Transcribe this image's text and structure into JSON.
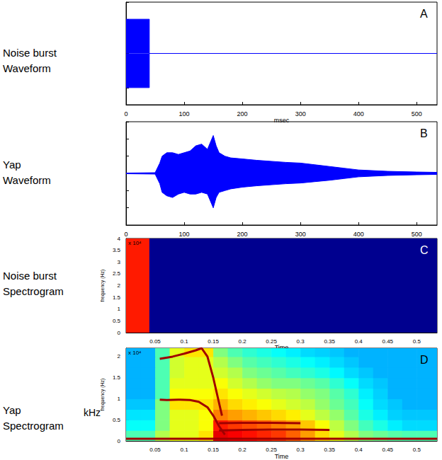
{
  "chart_data": [
    {
      "type": "area",
      "title": "Noise burst\nWaveform",
      "panel": "A",
      "xlabel": "msec",
      "x": [
        0,
        40,
        40,
        535
      ],
      "upper": [
        1,
        1,
        0,
        0
      ],
      "lower": [
        -1,
        -1,
        0,
        0
      ],
      "color": "#0000ff",
      "xlim": [
        0,
        535
      ],
      "xticks": [
        0,
        100,
        200,
        300,
        400,
        500
      ],
      "ylim": [
        -1.5,
        1.5
      ],
      "yticks": [
        -1.5,
        -1,
        -0.5,
        0,
        0.5,
        1,
        1.5
      ],
      "tick_labels": "x",
      "grid": false
    },
    {
      "type": "area",
      "title": "Yap\nWaveform",
      "panel": "B",
      "x": [
        0,
        50,
        58,
        62,
        70,
        80,
        90,
        100,
        110,
        120,
        130,
        140,
        150,
        155,
        160,
        170,
        180,
        200,
        225,
        250,
        275,
        300,
        325,
        350,
        375,
        400,
        450,
        500,
        535
      ],
      "upper": [
        0.01,
        0.02,
        0.3,
        0.5,
        0.6,
        0.6,
        0.55,
        0.6,
        0.65,
        0.8,
        0.85,
        0.7,
        1.1,
        0.8,
        0.6,
        0.5,
        0.45,
        0.42,
        0.38,
        0.35,
        0.32,
        0.3,
        0.25,
        0.2,
        0.15,
        0.1,
        0.06,
        0.04,
        0.03
      ],
      "lower": [
        -0.01,
        -0.02,
        -0.3,
        -0.55,
        -0.65,
        -0.7,
        -0.6,
        -0.55,
        -0.6,
        -0.6,
        -0.55,
        -0.6,
        -1.0,
        -0.7,
        -0.55,
        -0.5,
        -0.45,
        -0.4,
        -0.36,
        -0.33,
        -0.3,
        -0.28,
        -0.24,
        -0.2,
        -0.15,
        -0.1,
        -0.06,
        -0.04,
        -0.03
      ],
      "color": "#0000ff",
      "xlim": [
        0,
        535
      ],
      "xticks": [
        0,
        100,
        200,
        300,
        400,
        500
      ],
      "ylim": [
        -1.5,
        1.5
      ],
      "yticks": [
        -1.5,
        -1,
        -0.5,
        0,
        0.5,
        1,
        1.5
      ],
      "tick_labels": "x",
      "grid": false
    },
    {
      "type": "heatmap",
      "title": "Noise burst\nSpectrogram",
      "panel": "C",
      "xlabel": "Time",
      "ylabel": "frequency (Hz)",
      "multiplier": "x 10⁴",
      "x_edges": [
        0,
        0.04,
        0.535
      ],
      "y_edges": [
        0,
        4
      ],
      "z": [
        [
          0.85,
          0
        ]
      ],
      "clim": [
        0,
        1
      ],
      "xlim": [
        0,
        0.535
      ],
      "xticks": [
        0.05,
        0.1,
        0.15,
        0.2,
        0.25,
        0.3,
        0.35,
        0.4,
        0.45,
        0.5
      ],
      "ylim": [
        0,
        4
      ],
      "yticks": [
        0,
        0.5,
        1,
        1.5,
        2,
        2.5,
        3,
        3.5,
        4
      ],
      "grid": false
    },
    {
      "type": "heatmap",
      "title": "Yap\nSpectrogram",
      "panel": "D",
      "xlabel": "Time",
      "ylabel": "frequency (Hz)",
      "multiplier": "x 10⁴",
      "unit_label": "kHz",
      "x_edges": [
        0,
        0.025,
        0.05,
        0.075,
        0.1,
        0.125,
        0.15,
        0.175,
        0.2,
        0.225,
        0.25,
        0.275,
        0.3,
        0.325,
        0.35,
        0.375,
        0.4,
        0.425,
        0.45,
        0.475,
        0.5,
        0.525,
        0.535
      ],
      "y_edges": [
        0,
        0.25,
        0.5,
        0.75,
        1,
        1.25,
        1.5,
        1.75,
        2,
        2.2
      ],
      "z": [
        [
          0.45,
          0.45,
          0.55,
          0.6,
          0.6,
          0.65,
          0.9,
          0.88,
          0.86,
          0.84,
          0.82,
          0.78,
          0.72,
          0.66,
          0.6,
          0.55,
          0.5,
          0.48,
          0.46,
          0.45,
          0.45,
          0.45
        ],
        [
          0.38,
          0.38,
          0.5,
          0.6,
          0.6,
          0.62,
          0.85,
          0.82,
          0.8,
          0.78,
          0.75,
          0.72,
          0.68,
          0.62,
          0.56,
          0.5,
          0.44,
          0.4,
          0.36,
          0.34,
          0.34,
          0.34
        ],
        [
          0.35,
          0.35,
          0.5,
          0.6,
          0.6,
          0.62,
          0.75,
          0.72,
          0.7,
          0.68,
          0.66,
          0.64,
          0.6,
          0.56,
          0.52,
          0.46,
          0.4,
          0.36,
          0.33,
          0.32,
          0.32,
          0.32
        ],
        [
          0.32,
          0.32,
          0.5,
          0.65,
          0.65,
          0.65,
          0.7,
          0.66,
          0.64,
          0.62,
          0.6,
          0.58,
          0.56,
          0.52,
          0.48,
          0.44,
          0.38,
          0.34,
          0.32,
          0.3,
          0.3,
          0.3
        ],
        [
          0.3,
          0.3,
          0.45,
          0.62,
          0.62,
          0.62,
          0.65,
          0.62,
          0.6,
          0.58,
          0.56,
          0.55,
          0.52,
          0.5,
          0.46,
          0.42,
          0.36,
          0.33,
          0.3,
          0.3,
          0.3,
          0.3
        ],
        [
          0.3,
          0.3,
          0.45,
          0.6,
          0.6,
          0.6,
          0.62,
          0.58,
          0.55,
          0.52,
          0.5,
          0.5,
          0.48,
          0.46,
          0.42,
          0.38,
          0.34,
          0.32,
          0.3,
          0.3,
          0.3,
          0.3
        ],
        [
          0.3,
          0.3,
          0.45,
          0.58,
          0.6,
          0.6,
          0.58,
          0.55,
          0.5,
          0.48,
          0.46,
          0.44,
          0.42,
          0.4,
          0.37,
          0.34,
          0.32,
          0.3,
          0.3,
          0.3,
          0.3,
          0.3
        ],
        [
          0.3,
          0.3,
          0.45,
          0.58,
          0.6,
          0.6,
          0.55,
          0.5,
          0.46,
          0.44,
          0.42,
          0.4,
          0.38,
          0.36,
          0.34,
          0.32,
          0.3,
          0.3,
          0.3,
          0.3,
          0.3,
          0.3
        ],
        [
          0.3,
          0.3,
          0.45,
          0.6,
          0.65,
          0.65,
          0.5,
          0.45,
          0.42,
          0.4,
          0.38,
          0.36,
          0.34,
          0.33,
          0.32,
          0.3,
          0.3,
          0.3,
          0.3,
          0.3,
          0.3,
          0.3
        ]
      ],
      "clim": [
        0,
        1
      ],
      "ridges": [
        {
          "x": [
            0,
            0.535
          ],
          "y": [
            0.05,
            0.05
          ],
          "color": "#a00000"
        },
        {
          "x": [
            0.058,
            0.07,
            0.09,
            0.11,
            0.125,
            0.14,
            0.15,
            0.16,
            0.17
          ],
          "y": [
            0.98,
            0.97,
            0.98,
            0.97,
            0.93,
            0.8,
            0.6,
            0.35,
            0.15
          ],
          "color": "#a00000"
        },
        {
          "x": [
            0.058,
            0.08,
            0.1,
            0.12,
            0.13,
            0.14,
            0.15,
            0.16,
            0.165
          ],
          "y": [
            1.95,
            2.0,
            2.07,
            2.15,
            2.2,
            2.0,
            1.5,
            0.9,
            0.6
          ],
          "color": "#a00000"
        },
        {
          "x": [
            0.16,
            0.2,
            0.25,
            0.3,
            0.35
          ],
          "y": [
            0.25,
            0.26,
            0.27,
            0.27,
            0.26
          ],
          "color": "#a00000"
        },
        {
          "x": [
            0.16,
            0.2,
            0.25,
            0.3
          ],
          "y": [
            0.42,
            0.43,
            0.43,
            0.42
          ],
          "color": "#a00000"
        }
      ],
      "xlim": [
        0,
        0.535
      ],
      "xticks": [
        0.05,
        0.1,
        0.15,
        0.2,
        0.25,
        0.3,
        0.35,
        0.4,
        0.45,
        0.5
      ],
      "ylim": [
        0,
        2.2
      ],
      "yticks": [
        0,
        0.5,
        1,
        1.5,
        2
      ],
      "grid": false
    }
  ]
}
